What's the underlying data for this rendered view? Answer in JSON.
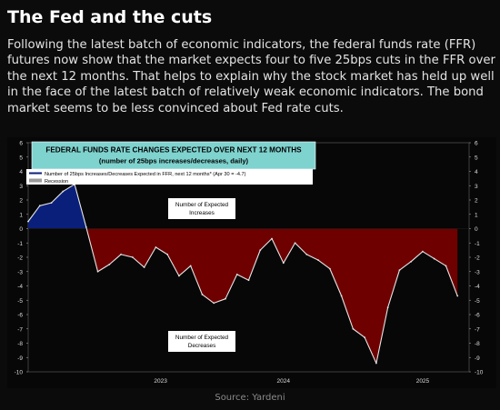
{
  "slide": {
    "title": "The Fed and the cuts",
    "description": "Following the latest batch of economic indicators, the federal funds rate (FFR) futures now show that the market expects four to five 25bps cuts in the FFR over the next 12 months. That helps to explain why the stock market has held up well in the face of the latest batch of relatively weak economic indicators. The bond market seems to be less convinced about Fed rate cuts.",
    "source": "Source: Yardeni"
  },
  "colors": {
    "background": "#0b0b0b",
    "title_box": "#7fd3cf",
    "positive_fill": "#0a1f7a",
    "negative_fill": "#6e0000",
    "line": "#e6e6e6",
    "recession": "#9a9a9a"
  },
  "chart_data": {
    "type": "area",
    "title": "FEDERAL FUNDS RATE CHANGES EXPECTED OVER NEXT 12 MONTHS",
    "subtitle": "(number of 25bps increases/decreases, daily)",
    "legend": {
      "series_label": "Number of 25bps Increases/Decreases Expected in FFR, next 12 months* (Apr 30 = -4.7)",
      "recession_label": "Recession",
      "placement": "top-left"
    },
    "annotations": [
      "Number of Expected Increases",
      "Number of Expected Decreases"
    ],
    "ylim": [
      -10,
      6
    ],
    "y_ticks": [
      6,
      5,
      4,
      3,
      2,
      1,
      0,
      -1,
      -2,
      -3,
      -4,
      -5,
      -6,
      -7,
      -8,
      -9,
      -10
    ],
    "x_tick_labels": [
      "2023",
      "2024",
      "2025"
    ],
    "x_ticks": [
      "2023",
      "2024",
      "2025"
    ],
    "xlim": [
      "2022-03",
      "2025-05"
    ],
    "grid": false,
    "x": [
      "2022-03",
      "2022-04",
      "2022-05",
      "2022-06",
      "2022-07",
      "2022-08",
      "2022-09",
      "2022-10",
      "2022-11",
      "2022-12",
      "2023-01",
      "2023-02",
      "2023-03",
      "2023-04",
      "2023-05",
      "2023-06",
      "2023-07",
      "2023-08",
      "2023-09",
      "2023-10",
      "2023-11",
      "2023-12",
      "2024-01",
      "2024-02",
      "2024-03",
      "2024-04",
      "2024-05",
      "2024-06",
      "2024-07",
      "2024-08",
      "2024-09",
      "2024-10",
      "2024-11",
      "2024-12",
      "2025-01",
      "2025-02",
      "2025-03",
      "2025-04"
    ],
    "values": [
      0.5,
      1.6,
      1.8,
      2.6,
      3.1,
      0.1,
      -3.0,
      -2.5,
      -1.8,
      -2.0,
      -2.7,
      -1.3,
      -1.8,
      -3.3,
      -2.6,
      -4.6,
      -5.2,
      -4.9,
      -3.2,
      -3.6,
      -1.5,
      -0.7,
      -2.4,
      -1.0,
      -1.8,
      -2.2,
      -2.8,
      -4.7,
      -7.0,
      -7.6,
      -9.4,
      -5.5,
      -2.9,
      -2.3,
      -1.6,
      -2.1,
      -2.6,
      -4.7
    ]
  }
}
